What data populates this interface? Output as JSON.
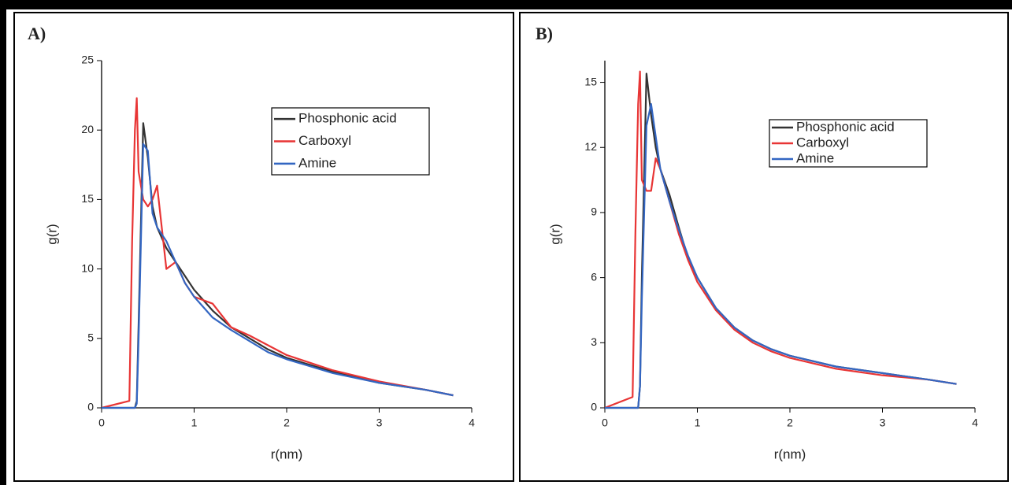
{
  "chart_data": [
    {
      "type": "line",
      "panel_label": "A)",
      "x_label": "r(nm)",
      "y_label": "g(r)",
      "x": [
        0,
        0.3,
        0.33,
        0.36,
        0.38,
        0.4,
        0.45,
        0.5,
        0.55,
        0.6,
        0.7,
        0.8,
        0.9,
        1.0,
        1.2,
        1.4,
        1.6,
        1.8,
        2.0,
        2.5,
        3.0,
        3.5,
        3.8
      ],
      "series": [
        {
          "name": "Phosphonic acid",
          "color": "#333333",
          "values": [
            0,
            0,
            0,
            0,
            0.5,
            6,
            20.5,
            18,
            14.5,
            13,
            11.5,
            10.5,
            9.5,
            8.5,
            7,
            5.8,
            5,
            4.2,
            3.6,
            2.6,
            1.8,
            1.3,
            0.9
          ]
        },
        {
          "name": "Carboxyl",
          "color": "#e83535",
          "values": [
            0,
            0.5,
            12,
            20,
            22.3,
            17,
            15,
            14.5,
            15,
            16,
            10,
            10.5,
            9,
            8,
            7.5,
            5.8,
            5.2,
            4.5,
            3.8,
            2.7,
            1.9,
            1.3,
            0.9
          ]
        },
        {
          "name": "Amine",
          "color": "#3366c2",
          "values": [
            0,
            0,
            0,
            0,
            0.3,
            5,
            19,
            18.5,
            14,
            13,
            12,
            10.5,
            9,
            8,
            6.5,
            5.6,
            4.8,
            4,
            3.5,
            2.5,
            1.8,
            1.3,
            0.9
          ]
        }
      ],
      "xlim": [
        0,
        4
      ],
      "xticks": [
        0,
        1,
        2,
        3,
        4
      ],
      "ylim": [
        0,
        25
      ],
      "yticks": [
        0,
        5,
        10,
        15,
        20,
        25
      ],
      "grid": false
    },
    {
      "type": "line",
      "panel_label": "B)",
      "x_label": "r(nm)",
      "y_label": "g(r)",
      "x": [
        0,
        0.3,
        0.33,
        0.36,
        0.38,
        0.4,
        0.45,
        0.5,
        0.55,
        0.6,
        0.7,
        0.8,
        0.9,
        1.0,
        1.2,
        1.4,
        1.6,
        1.8,
        2.0,
        2.5,
        3.0,
        3.5,
        3.8
      ],
      "series": [
        {
          "name": "Phosphonic acid",
          "color": "#333333",
          "values": [
            0,
            0,
            0,
            0,
            1,
            6,
            15.4,
            13.5,
            12,
            11,
            9.8,
            8.3,
            6.9,
            6,
            4.6,
            3.7,
            3.1,
            2.7,
            2.4,
            1.9,
            1.6,
            1.3,
            1.1
          ]
        },
        {
          "name": "Carboxyl",
          "color": "#e83535",
          "values": [
            0,
            0.5,
            8,
            14,
            15.5,
            10.5,
            10,
            10,
            11.5,
            11,
            9.5,
            8,
            6.8,
            5.8,
            4.5,
            3.6,
            3,
            2.6,
            2.3,
            1.8,
            1.5,
            1.3,
            1.1
          ]
        },
        {
          "name": "Amine",
          "color": "#3366c2",
          "values": [
            0,
            0,
            0,
            0,
            1,
            5,
            13,
            14,
            12.5,
            11,
            9.5,
            8.2,
            7,
            6,
            4.6,
            3.7,
            3.1,
            2.7,
            2.4,
            1.9,
            1.6,
            1.3,
            1.1
          ]
        }
      ],
      "xlim": [
        0,
        4
      ],
      "xticks": [
        0,
        1,
        2,
        3,
        4
      ],
      "ylim": [
        0,
        16
      ],
      "yticks": [
        0,
        3,
        6,
        9,
        12,
        15
      ],
      "grid": false
    }
  ]
}
